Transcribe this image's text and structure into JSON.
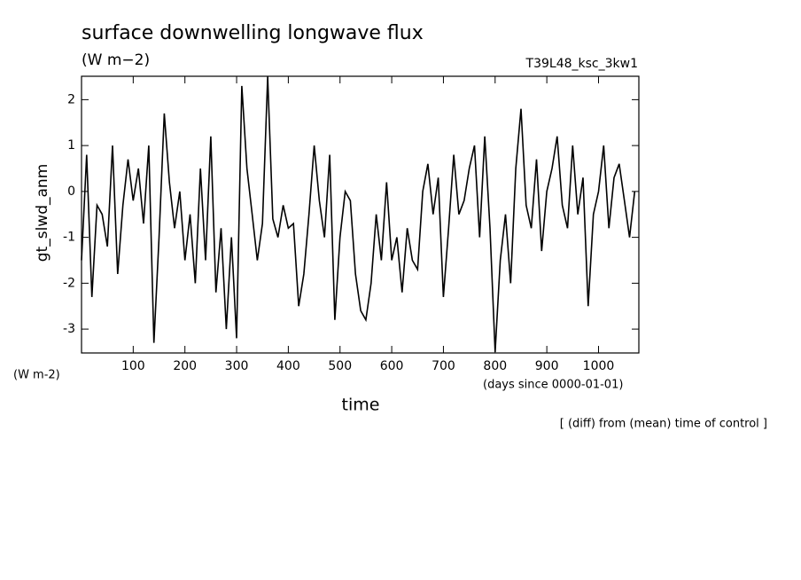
{
  "chart_data": {
    "type": "line",
    "title": "surface downwelling longwave flux",
    "subtitle": "(W m−2)",
    "run_label": "T39L48_ksc_3kw1",
    "y_label": "gt_slwd_anm",
    "y_units": "(W m-2)",
    "x_label": "time",
    "x_units": "(days since 0000-01-01)",
    "note": "[ (diff) from (mean) time of control ]",
    "color": "#000000",
    "x": [
      0,
      10,
      20,
      30,
      40,
      50,
      60,
      70,
      80,
      90,
      100,
      110,
      120,
      130,
      140,
      150,
      160,
      170,
      180,
      190,
      200,
      210,
      220,
      230,
      240,
      250,
      260,
      270,
      280,
      290,
      300,
      310,
      320,
      330,
      340,
      350,
      360,
      370,
      380,
      390,
      400,
      410,
      420,
      430,
      440,
      450,
      460,
      470,
      480,
      490,
      500,
      510,
      520,
      530,
      540,
      550,
      560,
      570,
      580,
      590,
      600,
      610,
      620,
      630,
      640,
      650,
      660,
      670,
      680,
      690,
      700,
      710,
      720,
      730,
      740,
      750,
      760,
      770,
      780,
      790,
      800,
      810,
      820,
      830,
      840,
      850,
      860,
      870,
      880,
      890,
      900,
      910,
      920,
      930,
      940,
      950,
      960,
      970,
      980,
      990,
      1000,
      1010,
      1020,
      1030,
      1040,
      1050,
      1060,
      1070
    ],
    "values": [
      -1.5,
      0.8,
      -2.3,
      -0.3,
      -0.5,
      -1.2,
      1.0,
      -1.8,
      -0.3,
      0.7,
      -0.2,
      0.5,
      -0.7,
      1.0,
      -3.3,
      -1.0,
      1.7,
      0.2,
      -0.8,
      0.0,
      -1.5,
      -0.5,
      -2.0,
      0.5,
      -1.5,
      1.2,
      -2.2,
      -0.8,
      -3.0,
      -1.0,
      -3.2,
      2.3,
      0.5,
      -0.5,
      -1.5,
      -0.7,
      2.5,
      -0.6,
      -1.0,
      -0.3,
      -0.8,
      -0.7,
      -2.5,
      -1.8,
      -0.5,
      1.0,
      -0.2,
      -1.0,
      0.8,
      -2.8,
      -1.0,
      0.0,
      -0.2,
      -1.8,
      -2.6,
      -2.8,
      -2.0,
      -0.5,
      -1.5,
      0.2,
      -1.5,
      -1.0,
      -2.2,
      -0.8,
      -1.5,
      -1.7,
      0.0,
      0.6,
      -0.5,
      0.3,
      -2.3,
      -0.8,
      0.8,
      -0.5,
      -0.2,
      0.5,
      1.0,
      -1.0,
      1.2,
      -0.8,
      -3.5,
      -1.5,
      -0.5,
      -2.0,
      0.5,
      1.8,
      -0.3,
      -0.8,
      0.7,
      -1.3,
      0.0,
      0.5,
      1.2,
      -0.3,
      -0.8,
      1.0,
      -0.5,
      0.3,
      -2.5,
      -0.5,
      0.0,
      1.0,
      -0.8,
      0.3,
      0.6,
      -0.2,
      -1.0,
      0.0
    ],
    "xlim": [
      0,
      1078
    ],
    "ylim": [
      -3.52,
      2.51
    ],
    "xticks": [
      100,
      200,
      300,
      400,
      500,
      600,
      700,
      800,
      900,
      1000
    ],
    "yticks": [
      -3,
      -2,
      -1,
      0,
      1,
      2
    ]
  }
}
